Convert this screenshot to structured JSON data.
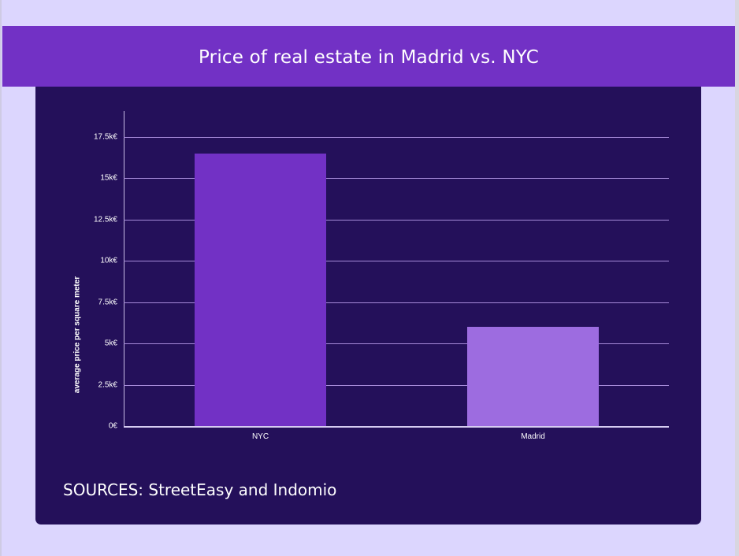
{
  "header": {
    "title": "Price of real estate in Madrid vs. NYC"
  },
  "footer": {
    "sources": "SOURCES: StreetEasy and Indomio"
  },
  "colors": {
    "page_background": "#dcd6fe",
    "header_background": "#7231c5",
    "panel_background": "#24105a",
    "gridline": "#a58ad8",
    "bar_nyc": "#7231c5",
    "bar_madrid": "#9d6ce0"
  },
  "chart_data": {
    "type": "bar",
    "title": "Price of real estate in Madrid vs. NYC",
    "xlabel": "",
    "ylabel": "average price per square meter",
    "categories": [
      "NYC",
      "Madrid"
    ],
    "values": [
      16500,
      6000
    ],
    "unit": "€",
    "bar_colors": [
      "#7231c5",
      "#9d6ce0"
    ],
    "ylim": [
      0,
      19000
    ],
    "yticks": [
      0,
      2500,
      5000,
      7500,
      10000,
      12500,
      15000,
      17500
    ],
    "ytick_labels": [
      "0€",
      "2.5k€",
      "5k€",
      "7.5k€",
      "10k€",
      "12.5k€",
      "15k€",
      "17.5k€"
    ],
    "grid": true,
    "legend": null,
    "annotation": "SOURCES: StreetEasy and Indomio"
  }
}
